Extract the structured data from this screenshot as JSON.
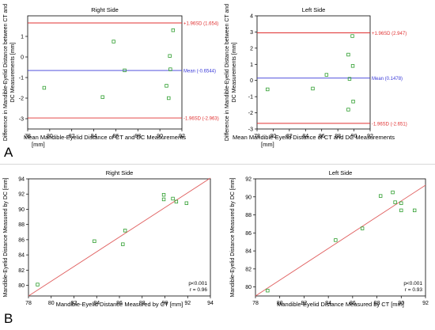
{
  "panel_labels": [
    "A",
    "B"
  ],
  "chart_data": [
    {
      "type": "scatter",
      "title": "Right Side",
      "xlabel": "Mean Mandible-Eyelid Distance of CT and DC Measurements [mm]",
      "ylabel": "Difference in Mandible-Eyelid Distance between CT and DC Measurements [mm]",
      "xlim": [
        78,
        92
      ],
      "ylim": [
        -3.5,
        2
      ],
      "xticks": [
        78,
        80,
        82,
        84,
        86,
        88,
        90,
        92
      ],
      "yticks": [
        -3,
        -2,
        -1,
        0,
        1
      ],
      "grid": false,
      "points": [
        {
          "x": 79.5,
          "y": -1.5
        },
        {
          "x": 84.8,
          "y": -1.95
        },
        {
          "x": 85.8,
          "y": 0.75
        },
        {
          "x": 86.8,
          "y": -0.65
        },
        {
          "x": 90.6,
          "y": -1.4
        },
        {
          "x": 90.8,
          "y": -2.0
        },
        {
          "x": 90.9,
          "y": 0.05
        },
        {
          "x": 90.95,
          "y": -0.6
        },
        {
          "x": 91.2,
          "y": 1.3
        }
      ],
      "reference_lines": [
        {
          "y": 1.654,
          "label": "+1.96SD (1.654)",
          "color": "#e03030"
        },
        {
          "y": -0.6544,
          "label": "Mean (-0.6544)",
          "color": "#3a3ad8"
        },
        {
          "y": -2.963,
          "label": "-1.96SD (-2.963)",
          "color": "#e03030"
        }
      ]
    },
    {
      "type": "scatter",
      "title": "Left Side",
      "xlabel": "Mean Mandible-Eyelid Distance of CT and DC Measurements [mm]",
      "ylabel": "Difference in Mandible-Eyelid Distance between CT and DC Measurements [mm]",
      "xlim": [
        78,
        92
      ],
      "ylim": [
        -3,
        4
      ],
      "xticks": [
        78,
        80,
        82,
        84,
        86,
        88,
        90,
        92
      ],
      "yticks": [
        -3,
        -2,
        -1,
        0,
        1,
        2,
        3,
        4
      ],
      "grid": false,
      "points": [
        {
          "x": 79.3,
          "y": -0.55
        },
        {
          "x": 84.9,
          "y": -0.5
        },
        {
          "x": 86.6,
          "y": 0.35
        },
        {
          "x": 89.3,
          "y": 1.6
        },
        {
          "x": 89.45,
          "y": 0.1
        },
        {
          "x": 89.3,
          "y": -1.8
        },
        {
          "x": 89.8,
          "y": 2.75
        },
        {
          "x": 89.85,
          "y": 0.9
        },
        {
          "x": 89.9,
          "y": -1.3
        }
      ],
      "reference_lines": [
        {
          "y": 2.947,
          "label": "+1.96SD (2.947)",
          "color": "#e03030"
        },
        {
          "y": 0.1478,
          "label": "Mean (0.1478)",
          "color": "#3a3ad8"
        },
        {
          "y": -2.651,
          "label": "-1.96SD (-2.651)",
          "color": "#e03030"
        }
      ]
    },
    {
      "type": "scatter",
      "title": "Right Side",
      "xlabel": "Mandible-Eyelid Distance Measured by CT [mm]",
      "ylabel": "Mandible-Eyelid Distance Measured by DC [mm]",
      "xlim": [
        78,
        94
      ],
      "ylim": [
        78.6,
        94
      ],
      "xticks": [
        78,
        80,
        82,
        84,
        86,
        88,
        90,
        92,
        94
      ],
      "yticks": [
        80,
        82,
        84,
        86,
        88,
        90,
        92,
        94
      ],
      "grid": false,
      "points": [
        {
          "x": 78.8,
          "y": 80.1
        },
        {
          "x": 83.8,
          "y": 85.8
        },
        {
          "x": 86.3,
          "y": 85.4
        },
        {
          "x": 86.5,
          "y": 87.2
        },
        {
          "x": 89.9,
          "y": 91.9
        },
        {
          "x": 89.9,
          "y": 91.3
        },
        {
          "x": 90.7,
          "y": 91.4
        },
        {
          "x": 91.0,
          "y": 91.0
        },
        {
          "x": 91.9,
          "y": 90.8
        }
      ],
      "fit_line": {
        "x": [
          78,
          94
        ],
        "y": [
          78.6,
          94.1
        ],
        "color": "#e06060"
      },
      "annotations": [
        "p<0.001",
        "r = 0.96"
      ]
    },
    {
      "type": "scatter",
      "title": "Left Side",
      "xlabel": "Mandible-Eyelid Distance Measured by CT [mm]",
      "ylabel": "Mandible-Eyelid Distance Measured by DC [mm]",
      "xlim": [
        78,
        92
      ],
      "ylim": [
        79,
        92
      ],
      "xticks": [
        78,
        80,
        82,
        84,
        86,
        88,
        90,
        92
      ],
      "yticks": [
        80,
        82,
        84,
        86,
        88,
        90,
        92
      ],
      "grid": false,
      "points": [
        {
          "x": 79.0,
          "y": 79.6
        },
        {
          "x": 84.6,
          "y": 85.2
        },
        {
          "x": 86.8,
          "y": 86.5
        },
        {
          "x": 88.3,
          "y": 90.1
        },
        {
          "x": 89.3,
          "y": 90.5
        },
        {
          "x": 89.5,
          "y": 89.4
        },
        {
          "x": 90.0,
          "y": 89.3
        },
        {
          "x": 90.0,
          "y": 88.5
        },
        {
          "x": 91.1,
          "y": 88.5
        }
      ],
      "fit_line": {
        "x": [
          78,
          92
        ],
        "y": [
          79.0,
          91.3
        ],
        "color": "#e06060"
      },
      "annotations": [
        "p<0.001",
        "r = 0.93"
      ]
    }
  ]
}
